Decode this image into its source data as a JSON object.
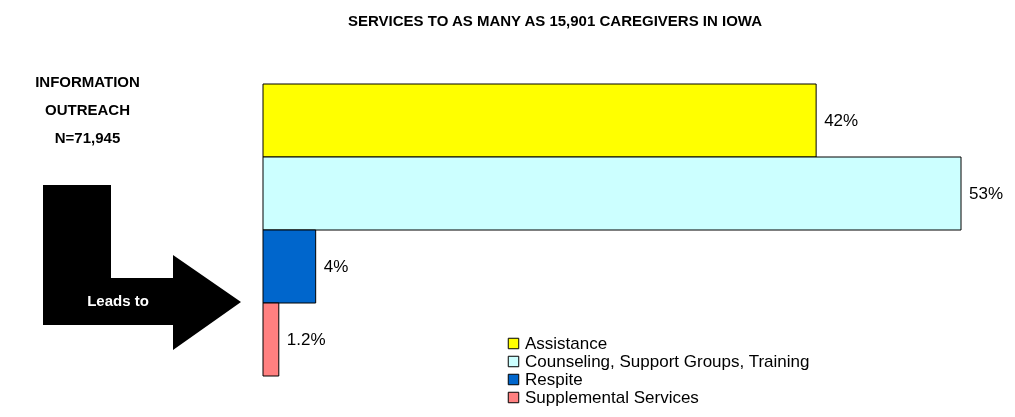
{
  "chart_data": {
    "type": "bar",
    "orientation": "horizontal",
    "title": "SERVICES TO AS MANY AS 15,901 CAREGIVERS IN IOWA",
    "categories": [
      null
    ],
    "series": [
      {
        "name": "Assistance",
        "color": "#ffff00",
        "values": [
          42
        ],
        "value_labels": [
          "42%"
        ]
      },
      {
        "name": "Counseling, Support Groups, Training",
        "color": "#ccffff",
        "values": [
          53
        ],
        "value_labels": [
          "53%"
        ]
      },
      {
        "name": "Respite",
        "color": "#0066cc",
        "values": [
          4
        ],
        "value_labels": [
          "4%"
        ]
      },
      {
        "name": "Supplemental Services",
        "color": "#ff8080",
        "values": [
          1.2
        ],
        "value_labels": [
          "1.2%"
        ]
      }
    ],
    "legend": "bottom",
    "annotations": [
      "INFORMATION OUTREACH N=71,945",
      "Leads to"
    ]
  }
}
